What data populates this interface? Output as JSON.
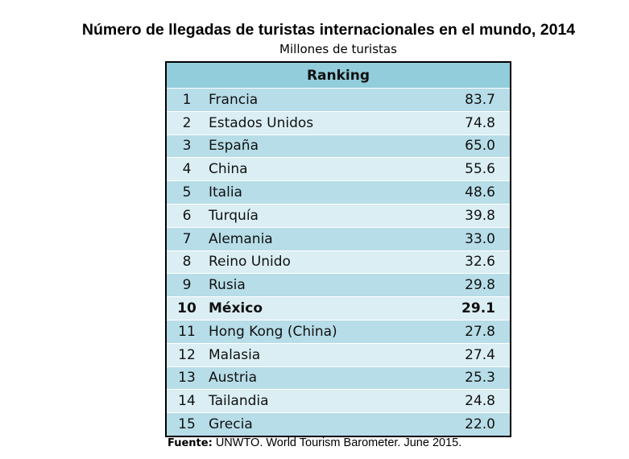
{
  "title": "Número de llegadas de turistas internacionales en el mundo, 2014",
  "subtitle": "Millones de turistas",
  "table": {
    "header": "Ranking",
    "rows": [
      {
        "rank": "1",
        "country": "Francia",
        "value": "83.7"
      },
      {
        "rank": "2",
        "country": "Estados Unidos",
        "value": "74.8"
      },
      {
        "rank": "3",
        "country": "España",
        "value": "65.0"
      },
      {
        "rank": "4",
        "country": "China",
        "value": "55.6"
      },
      {
        "rank": "5",
        "country": "Italia",
        "value": "48.6"
      },
      {
        "rank": "6",
        "country": "Turquía",
        "value": "39.8"
      },
      {
        "rank": "7",
        "country": "Alemania",
        "value": "33.0"
      },
      {
        "rank": "8",
        "country": "Reino Unido",
        "value": "32.6"
      },
      {
        "rank": "9",
        "country": "Rusia",
        "value": "29.8"
      },
      {
        "rank": "10",
        "country": "México",
        "value": "29.1",
        "highlight": true
      },
      {
        "rank": "11",
        "country": "Hong Kong (China)",
        "value": "27.8"
      },
      {
        "rank": "12",
        "country": "Malasia",
        "value": "27.4"
      },
      {
        "rank": "13",
        "country": "Austria",
        "value": "25.3"
      },
      {
        "rank": "14",
        "country": "Tailandia",
        "value": "24.8"
      },
      {
        "rank": "15",
        "country": "Grecia",
        "value": "22.0"
      }
    ]
  },
  "source": {
    "label": "Fuente:",
    "text": " UNWTO. World Tourism Barometer. June 2015."
  },
  "colors": {
    "header": "#92cddc",
    "row_odd": "#b7dde8",
    "row_even": "#daeef3"
  }
}
